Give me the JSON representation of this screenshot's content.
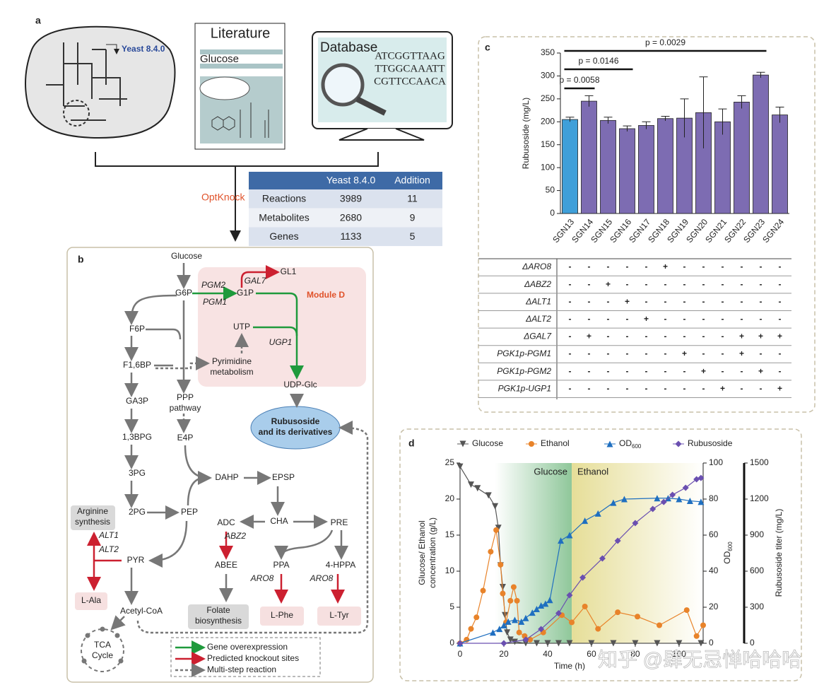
{
  "panel_labels": [
    "a",
    "b",
    "c",
    "d"
  ],
  "panel_a": {
    "model": "Yeast 8.4.0",
    "literature": "Literature",
    "literature_item": "Glucose",
    "database": "Database",
    "sequences": [
      "ATCGGTTAAG",
      "TTGGCAAATT",
      "CGTTCCAACA"
    ],
    "method": "OptKnock",
    "table": {
      "header": [
        "Yeast 8.4.0",
        "Addition"
      ],
      "rows": [
        [
          "Reactions",
          3989,
          11
        ],
        [
          "Metabolites",
          2680,
          9
        ],
        [
          "Genes",
          1133,
          5
        ]
      ]
    }
  },
  "panel_b": {
    "nodes": [
      [
        "Glucose"
      ],
      [
        "G6P"
      ],
      [
        "G1P"
      ],
      [
        "GL1"
      ],
      [
        "F6P"
      ],
      [
        "F1,6BP"
      ],
      [
        "GA3P"
      ],
      [
        "1,3BPG"
      ],
      [
        "3PG"
      ],
      [
        "2PG"
      ],
      [
        "PEP"
      ],
      [
        "PYR"
      ],
      [
        "Acetyl-CoA"
      ],
      [
        "PPP",
        "pathway"
      ],
      [
        "E4P"
      ],
      [
        "DAHP"
      ],
      [
        "EPSP"
      ],
      [
        "CHA"
      ],
      [
        "ADC"
      ],
      [
        "PRE"
      ],
      [
        "ABEE"
      ],
      [
        "PPA"
      ],
      [
        "4-HPPA"
      ],
      [
        "UTP"
      ],
      [
        "Pyrimidine",
        "metabolism"
      ],
      [
        "UDP-Glc"
      ],
      [
        "Rubusoside",
        "and its derivatives"
      ],
      [
        "Arginine",
        "synthesis"
      ],
      [
        "L-Ala"
      ],
      [
        "Folate",
        "biosynthesis"
      ],
      [
        "L-Phe"
      ],
      [
        "L-Tyr"
      ],
      [
        "TCA",
        "Cycle"
      ]
    ],
    "enzymes": [
      "PGM2",
      "PGM1",
      "GAL7",
      "UGP1",
      "ALT1",
      "ALT2",
      "ABZ2",
      "ARO8",
      "ARO8"
    ],
    "module": "Module D",
    "legend": [
      "Gene overexpression",
      "Predicted knockout sites",
      "Multi-step reaction"
    ]
  },
  "chart_data": [
    {
      "type": "bar",
      "ylabel": "Rubusoside (mg/L)",
      "categories": [
        "SGN13",
        "SGN14",
        "SGN15",
        "SGN16",
        "SGN17",
        "SGN18",
        "SGN19",
        "SGN20",
        "SGN21",
        "SGN22",
        "SGN23",
        "SGN24"
      ],
      "values": [
        205,
        245,
        203,
        185,
        192,
        207,
        208,
        220,
        200,
        243,
        302,
        215
      ],
      "errors": [
        5,
        12,
        7,
        6,
        8,
        5,
        42,
        78,
        28,
        14,
        6,
        17
      ],
      "colors": [
        "#3f9fd9",
        "#7d6cb2",
        "#7d6cb2",
        "#7d6cb2",
        "#7d6cb2",
        "#7d6cb2",
        "#7d6cb2",
        "#7d6cb2",
        "#7d6cb2",
        "#7d6cb2",
        "#7d6cb2",
        "#7d6cb2"
      ],
      "ylim": [
        0,
        350
      ],
      "yticks": [
        0,
        50,
        100,
        150,
        200,
        250,
        300,
        350
      ],
      "annotations": [
        "p = 0.0058",
        "p = 0.0146",
        "p = 0.0029"
      ]
    },
    {
      "type": "line",
      "xlabel": "Time (h)",
      "ylabel": [
        "Glucose/ Ethanol",
        "concentration (g/L)"
      ],
      "y2label": [
        "OD",
        "600"
      ],
      "y3label": "Rubusoside titer (mg/L)",
      "xlim": [
        0,
        111
      ],
      "xticks": [
        0,
        20,
        40,
        60,
        80,
        100
      ],
      "ylim": [
        0,
        25
      ],
      "yticks": [
        0,
        5,
        10,
        15,
        20,
        25
      ],
      "y2lim": [
        0,
        100
      ],
      "y2ticks": [
        0,
        20,
        40,
        60,
        80,
        100
      ],
      "y3lim": [
        0,
        1500
      ],
      "y3ticks": [
        0,
        300,
        600,
        900,
        1200,
        1500
      ],
      "phases": [
        {
          "label": "Glucose",
          "start": 16,
          "end": 51
        },
        {
          "label": "Ethanol",
          "start": 51,
          "end": 111
        }
      ],
      "series": [
        {
          "name": [
            "Glucose"
          ],
          "color": "#555555",
          "marker": "tri-down",
          "axis": "y",
          "x": [
            0,
            5,
            8,
            13,
            16,
            17.5,
            18.5,
            19.5,
            20.5,
            21.5,
            23,
            25,
            30,
            35,
            40,
            45,
            50,
            60,
            70,
            80,
            90,
            100,
            110
          ],
          "values": [
            24.5,
            22,
            21.5,
            20.5,
            19,
            16,
            10.8,
            7.8,
            3.9,
            1.5,
            0.5,
            0.2,
            0,
            0,
            0,
            0,
            0,
            0,
            0,
            0,
            0,
            0,
            0
          ]
        },
        {
          "name": [
            "Ethanol"
          ],
          "color": "#e8832a",
          "marker": "circle",
          "axis": "y",
          "x": [
            0,
            3,
            5,
            7.5,
            10.5,
            14,
            16.5,
            18.5,
            19.5,
            21,
            23,
            24.5,
            26,
            27,
            29.5,
            32,
            38,
            46.5,
            51,
            57,
            63,
            72,
            81,
            91,
            103.5,
            108,
            111
          ],
          "values": [
            0,
            0.5,
            2,
            3.6,
            7.3,
            12.7,
            15.7,
            10.9,
            6.9,
            2.9,
            5.9,
            7.8,
            5.9,
            1.5,
            1,
            0.5,
            1.5,
            3.9,
            2.9,
            5.1,
            2,
            4.3,
            3.7,
            2.5,
            4.6,
            1,
            2.5
          ]
        },
        {
          "name": [
            "OD",
            "600"
          ],
          "color": "#1f6fc0",
          "marker": "tri-up",
          "axis": "y2",
          "x": [
            0,
            15,
            18,
            20,
            22,
            25,
            28,
            30,
            33,
            35,
            37,
            39,
            41,
            46,
            50,
            57,
            63,
            70,
            75,
            90,
            95,
            100,
            105,
            110
          ],
          "values": [
            0,
            6,
            8,
            10,
            12,
            13,
            12,
            14,
            17,
            19,
            21,
            22,
            24,
            57,
            60,
            68,
            72,
            78,
            80,
            80.5,
            80.5,
            80,
            79,
            78.5
          ]
        },
        {
          "name": [
            "Rubusoside"
          ],
          "color": "#6a4fb0",
          "marker": "diamond",
          "axis": "y3",
          "x": [
            0,
            20,
            30,
            37,
            45,
            50,
            56,
            65,
            72,
            80,
            88,
            93,
            97,
            103,
            108,
            110
          ],
          "values": [
            0,
            0,
            30,
            118,
            250,
            400,
            547,
            706,
            853,
            1000,
            1118,
            1176,
            1235,
            1294,
            1365,
            1376
          ]
        }
      ]
    }
  ],
  "genotype_table": {
    "rows": [
      {
        "label": "ΔARO8",
        "marks": [
          "-",
          "-",
          "-",
          "-",
          "-",
          "+",
          "-",
          "-",
          "-",
          "-",
          "-",
          "-"
        ]
      },
      {
        "label": "ΔABZ2",
        "marks": [
          "-",
          "-",
          "+",
          "-",
          "-",
          "-",
          "-",
          "-",
          "-",
          "-",
          "-",
          "-"
        ]
      },
      {
        "label": "ΔALT1",
        "marks": [
          "-",
          "-",
          "-",
          "+",
          "-",
          "-",
          "-",
          "-",
          "-",
          "-",
          "-",
          "-"
        ]
      },
      {
        "label": "ΔALT2",
        "marks": [
          "-",
          "-",
          "-",
          "-",
          "+",
          "-",
          "-",
          "-",
          "-",
          "-",
          "-",
          "-"
        ]
      },
      {
        "label": "ΔGAL7",
        "marks": [
          "-",
          "+",
          "-",
          "-",
          "-",
          "-",
          "-",
          "-",
          "-",
          "+",
          "+",
          "+"
        ]
      },
      {
        "label": "PGK1p-PGM1",
        "marks": [
          "-",
          "-",
          "-",
          "-",
          "-",
          "-",
          "+",
          "-",
          "-",
          "+",
          "-",
          "-"
        ]
      },
      {
        "label": "PGK1p-PGM2",
        "marks": [
          "-",
          "-",
          "-",
          "-",
          "-",
          "-",
          "-",
          "+",
          "-",
          "-",
          "+",
          "-"
        ]
      },
      {
        "label": "PGK1p-UGP1",
        "marks": [
          "-",
          "-",
          "-",
          "-",
          "-",
          "-",
          "-",
          "-",
          "+",
          "-",
          "-",
          "+"
        ]
      }
    ]
  },
  "watermark": "知乎 @肆无忌惮哈哈哈"
}
